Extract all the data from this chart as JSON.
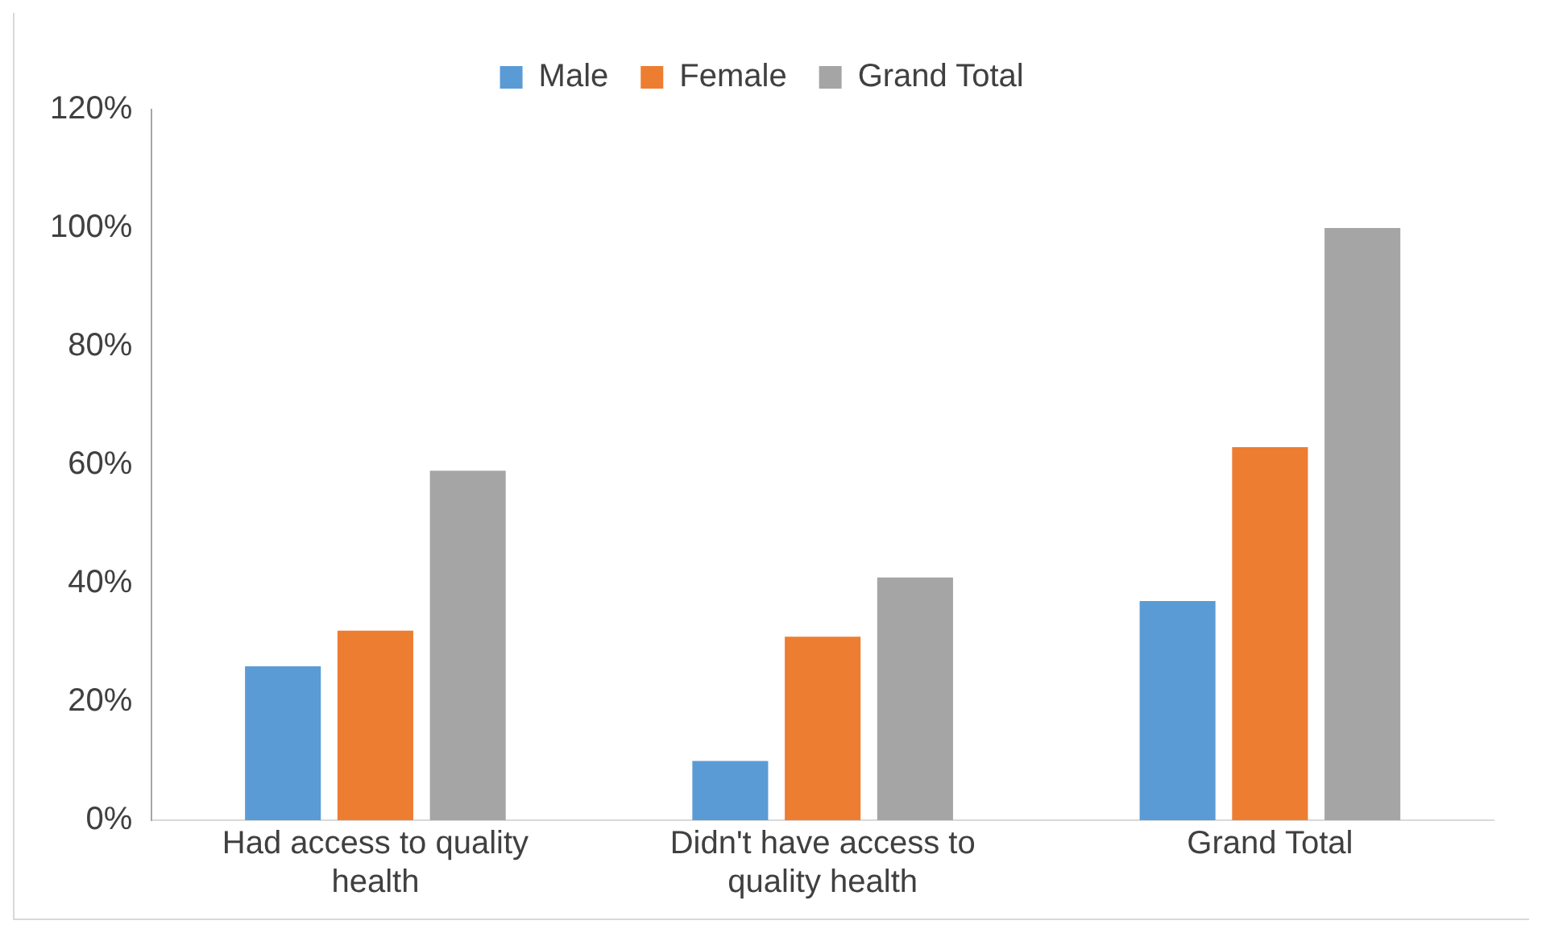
{
  "chart_data": {
    "type": "bar",
    "categories": [
      "Had access to quality health",
      "Didn't have access to quality health",
      "Grand Total"
    ],
    "series": [
      {
        "name": "Male",
        "color": "#5b9bd5",
        "values": [
          26,
          10,
          37
        ]
      },
      {
        "name": "Female",
        "color": "#ed7d31",
        "values": [
          32,
          31,
          63
        ]
      },
      {
        "name": "Grand Total",
        "color": "#a5a5a5",
        "values": [
          59,
          41,
          100
        ]
      }
    ],
    "ylim": [
      0,
      120
    ],
    "yticks": [
      {
        "value": 0,
        "label": "0%"
      },
      {
        "value": 20,
        "label": "20%"
      },
      {
        "value": 40,
        "label": "40%"
      },
      {
        "value": 60,
        "label": "60%"
      },
      {
        "value": 80,
        "label": "80%"
      },
      {
        "value": 100,
        "label": "100%"
      },
      {
        "value": 120,
        "label": "120%"
      }
    ],
    "grid": false,
    "legend": "top"
  }
}
